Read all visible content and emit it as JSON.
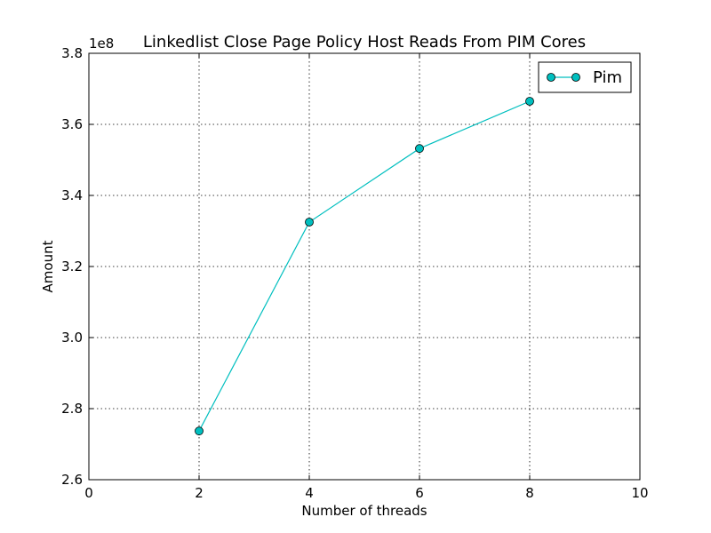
{
  "chart_data": {
    "type": "line",
    "title": "Linkedlist Close Page Policy Host Reads From PIM Cores",
    "xlabel": "Number of threads",
    "ylabel": "Amount",
    "y_offset_label": "1e8",
    "xlim": [
      0,
      10
    ],
    "ylim": [
      2.6,
      3.8
    ],
    "x_ticks": [
      0,
      2,
      4,
      6,
      8,
      10
    ],
    "x_tick_labels": [
      "0",
      "2",
      "4",
      "6",
      "8",
      "10"
    ],
    "y_ticks": [
      2.6,
      2.8,
      3.0,
      3.2,
      3.4,
      3.6,
      3.8
    ],
    "y_tick_labels": [
      "2.6",
      "2.8",
      "3.0",
      "3.2",
      "3.4",
      "3.6",
      "3.8"
    ],
    "grid": true,
    "legend_position": "top-right",
    "series": [
      {
        "name": "Pim",
        "color": "#00bfbf",
        "marker": "circle",
        "x": [
          2,
          4,
          6,
          8
        ],
        "y": [
          2.737,
          3.325,
          3.532,
          3.665
        ]
      }
    ]
  }
}
